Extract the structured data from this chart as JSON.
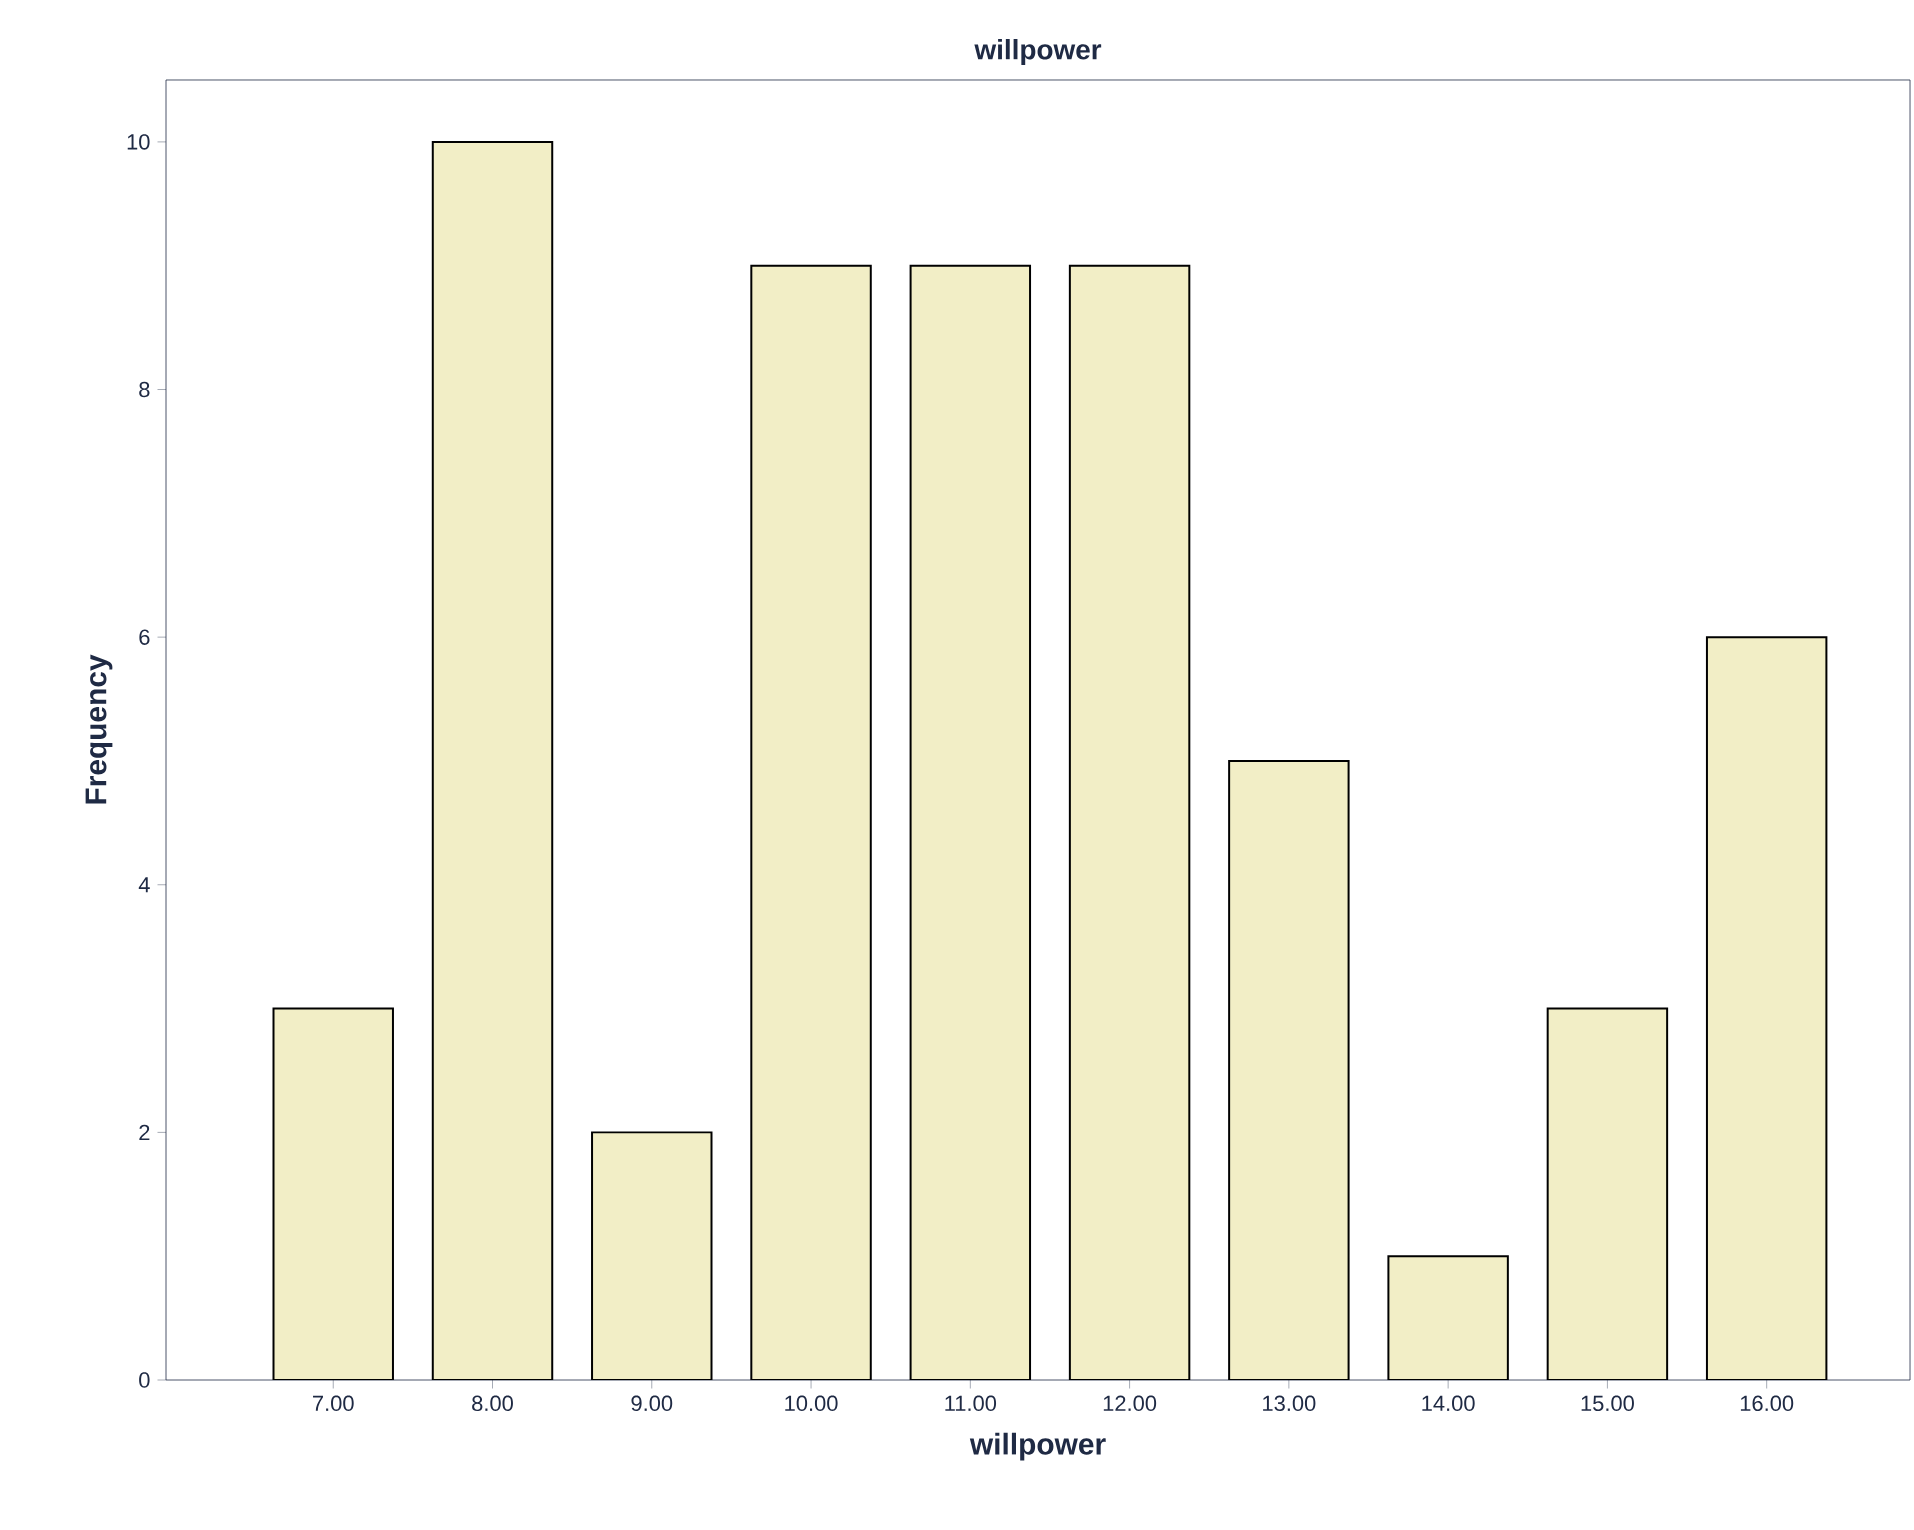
{
  "chart_data": {
    "type": "bar",
    "title": "willpower",
    "xlabel": "willpower",
    "ylabel": "Frequency",
    "categories": [
      "7.00",
      "8.00",
      "9.00",
      "10.00",
      "11.00",
      "12.00",
      "13.00",
      "14.00",
      "15.00",
      "16.00"
    ],
    "values": [
      3,
      10,
      2,
      9,
      9,
      9,
      5,
      1,
      3,
      6
    ],
    "color": "#f2eec6",
    "ylim": [
      0,
      10.5
    ],
    "yticks": [
      0,
      2,
      4,
      6,
      8,
      10
    ],
    "grid": false
  }
}
